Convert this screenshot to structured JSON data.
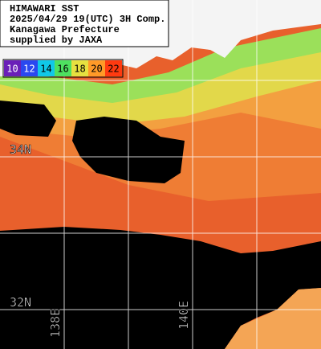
{
  "header": {
    "lines": [
      "HIMAWARI SST",
      "2025/04/29 19(UTC) 3H Comp.",
      "Kanagawa Prefecture",
      "supplied by JAXA"
    ]
  },
  "legend": {
    "items": [
      {
        "label": 10,
        "color": "#6a1fb8"
      },
      {
        "label": 12,
        "color": "#2a48f0"
      },
      {
        "label": 14,
        "color": "#10c8e8"
      },
      {
        "label": 16,
        "color": "#4ee060"
      },
      {
        "label": 18,
        "color": "#e6e040"
      },
      {
        "label": 20,
        "color": "#ff9a28"
      },
      {
        "label": 22,
        "color": "#ff3a10"
      }
    ]
  },
  "labels": {
    "lat": [
      "34N",
      "32N"
    ],
    "lon": [
      "138E",
      "140E"
    ]
  }
}
